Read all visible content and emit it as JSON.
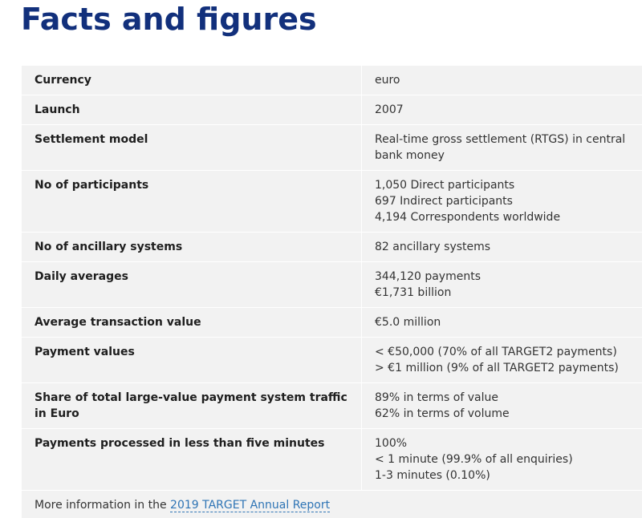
{
  "title": "Facts and figures",
  "accent_color": "#12307c",
  "link_color": "#2e74b5",
  "rows": [
    {
      "label": "Currency",
      "lines": [
        "euro"
      ]
    },
    {
      "label": "Launch",
      "lines": [
        "2007"
      ]
    },
    {
      "label": "Settlement model",
      "lines": [
        "Real-time gross settlement (RTGS) in central bank money"
      ]
    },
    {
      "label": "No of participants",
      "lines": [
        "1,050 Direct participants",
        "697 Indirect participants",
        "4,194 Correspondents worldwide"
      ]
    },
    {
      "label": "No of ancillary systems",
      "lines": [
        "82 ancillary systems"
      ]
    },
    {
      "label": "Daily averages",
      "lines": [
        "344,120 payments",
        "€1,731 billion"
      ]
    },
    {
      "label": "Average transaction value",
      "lines": [
        "€5.0 million"
      ]
    },
    {
      "label": "Payment values",
      "lines": [
        "< €50,000 (70% of all TARGET2 payments)",
        "> €1 million (9% of all TARGET2 payments)"
      ]
    },
    {
      "label": "Share of total large-value payment system traffic in Euro",
      "lines": [
        "89% in terms of value",
        "62% in terms of volume"
      ]
    },
    {
      "label": "Payments processed in less than five minutes",
      "lines": [
        "100%",
        "< 1 minute (99.9% of all enquiries)",
        "1-3 minutes (0.10%)"
      ]
    }
  ],
  "footer": {
    "text": "More information in the ",
    "link_text": "2019 TARGET Annual Report"
  }
}
